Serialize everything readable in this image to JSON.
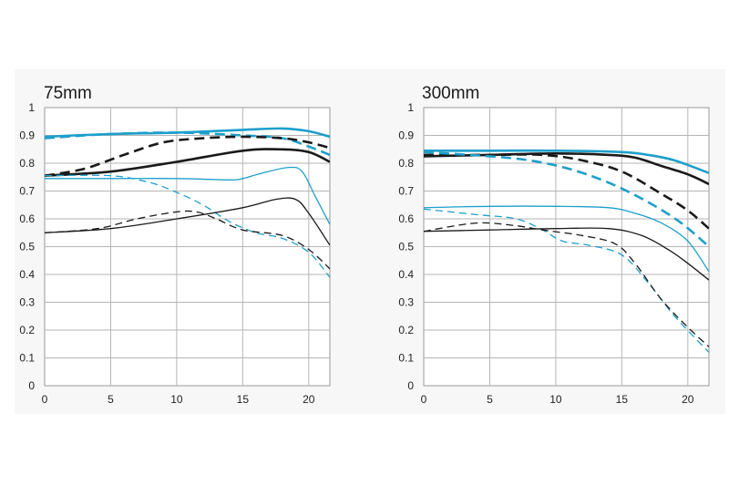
{
  "chart_data": [
    {
      "type": "line",
      "title": "75mm",
      "xlabel": "",
      "ylabel": "",
      "xlim": [
        0,
        21.6
      ],
      "ylim": [
        0,
        1
      ],
      "xticks": [
        "0",
        "5",
        "10",
        "15",
        "20"
      ],
      "yticks": [
        "0",
        "0.1",
        "0.2",
        "0.3",
        "0.4",
        "0.5",
        "0.6",
        "0.7",
        "0.8",
        "0.9",
        "1"
      ],
      "grid": true,
      "series": [
        {
          "color": "#1e9fcb",
          "style": "solid",
          "weight": "thick",
          "points": [
            [
              0,
              0.895
            ],
            [
              5,
              0.905
            ],
            [
              10,
              0.91
            ],
            [
              15,
              0.92
            ],
            [
              18,
              0.925
            ],
            [
              20,
              0.915
            ],
            [
              21.6,
              0.895
            ]
          ]
        },
        {
          "color": "#1e9fcb",
          "style": "dashed",
          "weight": "thick",
          "points": [
            [
              0,
              0.89
            ],
            [
              5,
              0.905
            ],
            [
              10,
              0.91
            ],
            [
              15,
              0.9
            ],
            [
              18,
              0.89
            ],
            [
              20,
              0.86
            ],
            [
              21.6,
              0.83
            ]
          ]
        },
        {
          "color": "#1a1a1a",
          "style": "dashed",
          "weight": "thick",
          "points": [
            [
              0,
              0.755
            ],
            [
              3,
              0.78
            ],
            [
              6,
              0.83
            ],
            [
              9,
              0.875
            ],
            [
              12,
              0.89
            ],
            [
              15,
              0.895
            ],
            [
              18,
              0.89
            ],
            [
              20,
              0.875
            ],
            [
              21.6,
              0.855
            ]
          ]
        },
        {
          "color": "#1a1a1a",
          "style": "solid",
          "weight": "thick",
          "points": [
            [
              0,
              0.755
            ],
            [
              5,
              0.77
            ],
            [
              10,
              0.805
            ],
            [
              15,
              0.845
            ],
            [
              18,
              0.85
            ],
            [
              20,
              0.84
            ],
            [
              21.6,
              0.805
            ]
          ]
        },
        {
          "color": "#1e9fcb",
          "style": "solid",
          "weight": "thin",
          "points": [
            [
              0,
              0.745
            ],
            [
              5,
              0.745
            ],
            [
              10,
              0.745
            ],
            [
              14,
              0.74
            ],
            [
              15,
              0.745
            ],
            [
              16.5,
              0.765
            ],
            [
              18.5,
              0.785
            ],
            [
              19.5,
              0.77
            ],
            [
              20.5,
              0.68
            ],
            [
              21.6,
              0.58
            ]
          ]
        },
        {
          "color": "#1e9fcb",
          "style": "dashed",
          "weight": "thin",
          "points": [
            [
              0,
              0.755
            ],
            [
              5,
              0.755
            ],
            [
              8,
              0.73
            ],
            [
              10,
              0.695
            ],
            [
              12,
              0.65
            ],
            [
              14,
              0.59
            ],
            [
              16,
              0.55
            ],
            [
              18,
              0.53
            ],
            [
              20,
              0.48
            ],
            [
              21.6,
              0.39
            ]
          ]
        },
        {
          "color": "#1a1a1a",
          "style": "solid",
          "weight": "thin",
          "points": [
            [
              0,
              0.55
            ],
            [
              5,
              0.565
            ],
            [
              10,
              0.6
            ],
            [
              15,
              0.64
            ],
            [
              17.5,
              0.67
            ],
            [
              19,
              0.67
            ],
            [
              20,
              0.62
            ],
            [
              21.6,
              0.505
            ]
          ]
        },
        {
          "color": "#1a1a1a",
          "style": "dashed",
          "weight": "thin",
          "points": [
            [
              0,
              0.55
            ],
            [
              4,
              0.565
            ],
            [
              7,
              0.6
            ],
            [
              10,
              0.625
            ],
            [
              11.5,
              0.625
            ],
            [
              13,
              0.6
            ],
            [
              15,
              0.56
            ],
            [
              18,
              0.54
            ],
            [
              20,
              0.49
            ],
            [
              21.6,
              0.42
            ]
          ]
        }
      ]
    },
    {
      "type": "line",
      "title": "300mm",
      "xlabel": "",
      "ylabel": "",
      "xlim": [
        0,
        21.6
      ],
      "ylim": [
        0,
        1
      ],
      "xticks": [
        "0",
        "5",
        "10",
        "15",
        "20"
      ],
      "yticks": [
        "0",
        "0.1",
        "0.2",
        "0.3",
        "0.4",
        "0.5",
        "0.6",
        "0.7",
        "0.8",
        "0.9",
        "1"
      ],
      "grid": true,
      "series": [
        {
          "color": "#1e9fcb",
          "style": "solid",
          "weight": "thick",
          "points": [
            [
              0,
              0.845
            ],
            [
              5,
              0.845
            ],
            [
              10,
              0.845
            ],
            [
              15,
              0.84
            ],
            [
              17,
              0.83
            ],
            [
              19,
              0.81
            ],
            [
              21.6,
              0.765
            ]
          ]
        },
        {
          "color": "#1a1a1a",
          "style": "solid",
          "weight": "thick",
          "points": [
            [
              0,
              0.825
            ],
            [
              5,
              0.83
            ],
            [
              10,
              0.835
            ],
            [
              14,
              0.83
            ],
            [
              16,
              0.82
            ],
            [
              18,
              0.79
            ],
            [
              20,
              0.76
            ],
            [
              21.6,
              0.725
            ]
          ]
        },
        {
          "color": "#1a1a1a",
          "style": "dashed",
          "weight": "thick",
          "points": [
            [
              0,
              0.83
            ],
            [
              5,
              0.83
            ],
            [
              9,
              0.83
            ],
            [
              12,
              0.81
            ],
            [
              15,
              0.77
            ],
            [
              18,
              0.69
            ],
            [
              20,
              0.63
            ],
            [
              21.6,
              0.565
            ]
          ]
        },
        {
          "color": "#1e9fcb",
          "style": "dashed",
          "weight": "thick",
          "points": [
            [
              0,
              0.84
            ],
            [
              5,
              0.825
            ],
            [
              8,
              0.81
            ],
            [
              11,
              0.78
            ],
            [
              14,
              0.73
            ],
            [
              17,
              0.66
            ],
            [
              19.5,
              0.585
            ],
            [
              21.6,
              0.5
            ]
          ]
        },
        {
          "color": "#1e9fcb",
          "style": "solid",
          "weight": "thin",
          "points": [
            [
              0,
              0.64
            ],
            [
              5,
              0.645
            ],
            [
              10,
              0.645
            ],
            [
              14,
              0.64
            ],
            [
              16,
              0.62
            ],
            [
              18,
              0.585
            ],
            [
              20,
              0.52
            ],
            [
              21.6,
              0.41
            ]
          ]
        },
        {
          "color": "#1e9fcb",
          "style": "dashed",
          "weight": "thin",
          "points": [
            [
              0,
              0.635
            ],
            [
              4,
              0.615
            ],
            [
              7,
              0.6
            ],
            [
              9,
              0.56
            ],
            [
              10.5,
              0.52
            ],
            [
              12.5,
              0.505
            ],
            [
              15,
              0.47
            ],
            [
              17,
              0.37
            ],
            [
              19,
              0.25
            ],
            [
              21.6,
              0.12
            ]
          ]
        },
        {
          "color": "#1a1a1a",
          "style": "dashed",
          "weight": "thin",
          "points": [
            [
              0,
              0.555
            ],
            [
              4,
              0.585
            ],
            [
              7,
              0.575
            ],
            [
              9,
              0.56
            ],
            [
              12,
              0.54
            ],
            [
              14.5,
              0.51
            ],
            [
              16,
              0.44
            ],
            [
              18,
              0.31
            ],
            [
              20,
              0.21
            ],
            [
              21.6,
              0.14
            ]
          ]
        },
        {
          "color": "#1a1a1a",
          "style": "solid",
          "weight": "thin",
          "points": [
            [
              0,
              0.555
            ],
            [
              5,
              0.56
            ],
            [
              10,
              0.565
            ],
            [
              14,
              0.565
            ],
            [
              16.5,
              0.54
            ],
            [
              18.5,
              0.49
            ],
            [
              20,
              0.44
            ],
            [
              21.6,
              0.38
            ]
          ]
        }
      ]
    }
  ]
}
